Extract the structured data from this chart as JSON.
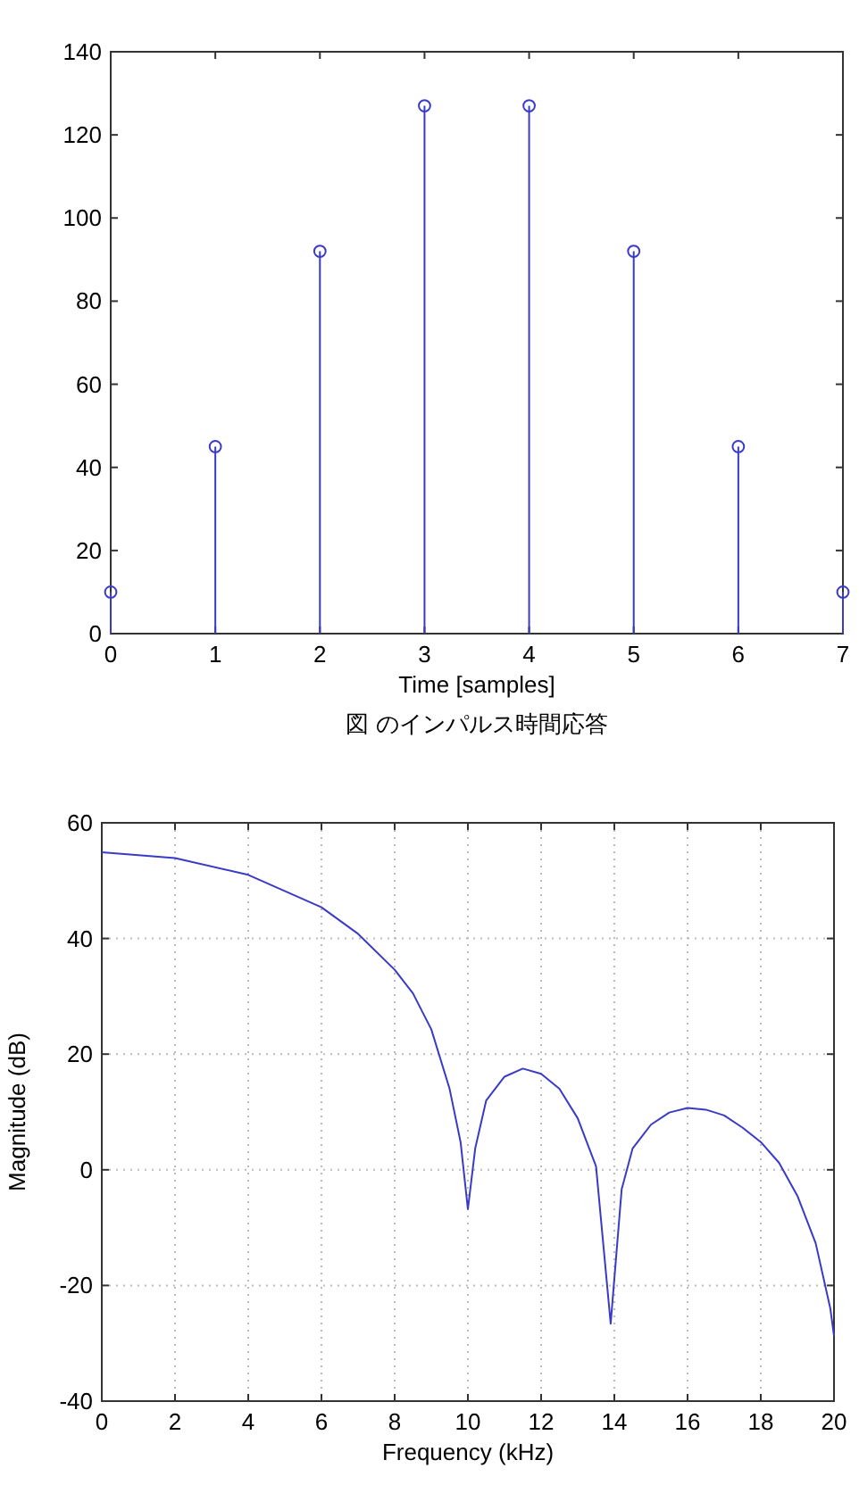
{
  "chart_data": [
    {
      "type": "lollipop",
      "x": [
        0,
        1,
        2,
        3,
        4,
        5,
        6,
        7
      ],
      "values": [
        10,
        45,
        92,
        127,
        127,
        92,
        45,
        10
      ],
      "color": "#3a3ac8",
      "marker": "circle",
      "xlim": [
        0,
        7
      ],
      "xticks": [
        0,
        1,
        2,
        3,
        4,
        5,
        6,
        7
      ],
      "ylim": [
        0,
        140
      ],
      "yticks": [
        0,
        20,
        40,
        60,
        80,
        100,
        120,
        140
      ],
      "xlabel": "Time [samples]",
      "annotations": [
        "図 のインパルス時間応答"
      ]
    },
    {
      "type": "line",
      "series": [
        {
          "color": "#3a3ac8",
          "x": [
            0,
            2,
            4,
            6,
            7,
            8,
            8.5,
            9,
            9.5,
            9.8,
            10,
            10.2,
            10.5,
            11,
            11.5,
            12,
            12.5,
            13,
            13.5,
            13.9,
            14.2,
            14.5,
            15,
            15.5,
            16,
            16.5,
            17,
            17.5,
            18,
            18.5,
            19,
            19.5,
            19.9,
            20
          ],
          "values": [
            54.9,
            53.9,
            51.0,
            45.4,
            40.8,
            34.6,
            30.5,
            24.3,
            14.0,
            4.8,
            -6.8,
            3.7,
            12.0,
            16.1,
            17.5,
            16.6,
            14.0,
            8.9,
            0.6,
            -26.6,
            -3.4,
            3.7,
            7.8,
            9.9,
            10.7,
            10.4,
            9.4,
            7.3,
            4.8,
            1.2,
            -4.5,
            -12.7,
            -24.0,
            -28.7
          ]
        }
      ],
      "xlim": [
        0,
        20
      ],
      "xticks": [
        0,
        2,
        4,
        6,
        8,
        10,
        12,
        14,
        16,
        18,
        20
      ],
      "ylim": [
        -40,
        60
      ],
      "yticks": [
        -40,
        -20,
        0,
        20,
        40,
        60
      ],
      "grid": true,
      "marker": "none",
      "xlabel": "Frequency (kHz)",
      "ylabel": "Magnitude (dB)"
    }
  ]
}
